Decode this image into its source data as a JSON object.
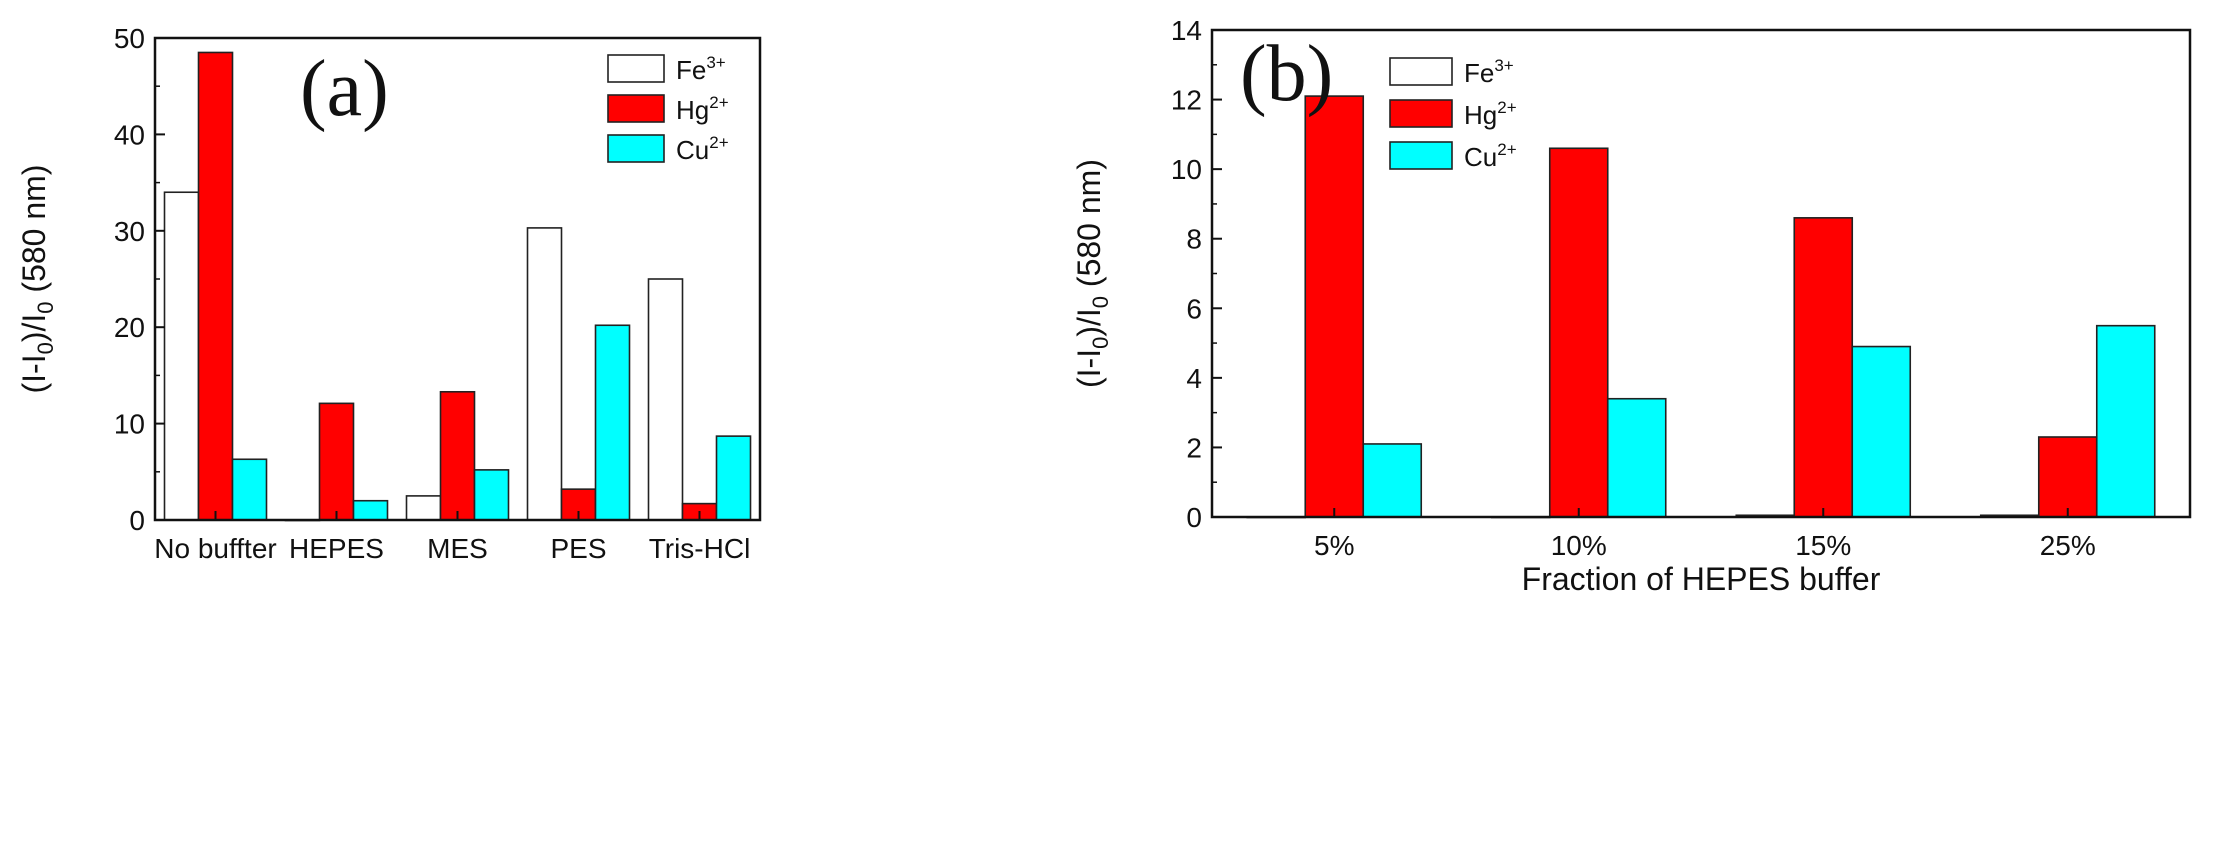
{
  "chart_data": [
    {
      "type": "bar",
      "panel_label": "(a)",
      "categories": [
        "No buffter",
        "HEPES",
        "MES",
        "PES",
        "Tris-HCl"
      ],
      "series": [
        {
          "name": "Fe",
          "sup": "3+",
          "color": "#ffffff",
          "values": [
            34,
            0,
            2.5,
            30.3,
            25
          ]
        },
        {
          "name": "Hg",
          "sup": "2+",
          "color": "#ff0000",
          "values": [
            48.5,
            12.1,
            13.3,
            3.2,
            1.7
          ]
        },
        {
          "name": "Cu",
          "sup": "2+",
          "color": "#00ffff",
          "values": [
            6.3,
            2.0,
            5.2,
            20.2,
            8.7
          ]
        }
      ],
      "xlabel": "",
      "ylabel": {
        "p1": "(I-I",
        "s1": "0",
        "p2": ")/I",
        "s2": "0",
        "p3": " (580 nm)"
      },
      "ylim": [
        0,
        50
      ],
      "yticks": [
        "0",
        "10",
        "20",
        "30",
        "40",
        "50"
      ],
      "legend_position": "top-right"
    },
    {
      "type": "bar",
      "panel_label": "(b)",
      "categories": [
        "5%",
        "10%",
        "15%",
        "25%"
      ],
      "series": [
        {
          "name": "Fe",
          "sup": "3+",
          "color": "#ffffff",
          "values": [
            0,
            0,
            0.05,
            0.05
          ]
        },
        {
          "name": "Hg",
          "sup": "2+",
          "color": "#ff0000",
          "values": [
            12.1,
            10.6,
            8.6,
            2.3
          ]
        },
        {
          "name": "Cu",
          "sup": "2+",
          "color": "#00ffff",
          "values": [
            2.1,
            3.4,
            4.9,
            5.5
          ]
        }
      ],
      "xlabel": "Fraction of HEPES buffer",
      "ylabel": {
        "p1": "(I-I",
        "s1": "0",
        "p2": ")/I",
        "s2": "0",
        "p3": " (580 nm)"
      },
      "ylim": [
        0,
        14
      ],
      "yticks": [
        "0",
        "2",
        "4",
        "6",
        "8",
        "10",
        "12",
        "14"
      ],
      "legend_position": "top-right"
    }
  ]
}
